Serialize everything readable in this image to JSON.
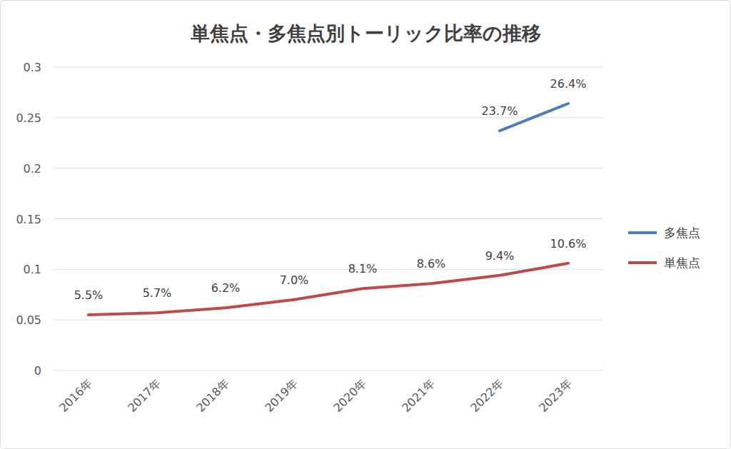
{
  "chart_data": {
    "type": "line",
    "title": "単焦点・多焦点別トーリック比率の推移",
    "categories": [
      "2016年",
      "2017年",
      "2018年",
      "2019年",
      "2020年",
      "2021年",
      "2022年",
      "2023年"
    ],
    "series": [
      {
        "name": "多焦点",
        "color": "#4a7ebb",
        "values": [
          null,
          null,
          null,
          null,
          null,
          null,
          0.237,
          0.264
        ],
        "value_labels": [
          null,
          null,
          null,
          null,
          null,
          null,
          "23.7%",
          "26.4%"
        ]
      },
      {
        "name": "単焦点",
        "color": "#be4b48",
        "values": [
          0.055,
          0.057,
          0.062,
          0.07,
          0.081,
          0.086,
          0.094,
          0.106
        ],
        "value_labels": [
          "5.5%",
          "5.7%",
          "6.2%",
          "7.0%",
          "8.1%",
          "8.6%",
          "9.4%",
          "10.6%"
        ]
      }
    ],
    "ylim": [
      0,
      0.3
    ],
    "yticks": [
      0,
      0.05,
      0.1,
      0.15,
      0.2,
      0.25,
      0.3
    ],
    "grid": true,
    "legend": "right",
    "data_labels": true
  }
}
